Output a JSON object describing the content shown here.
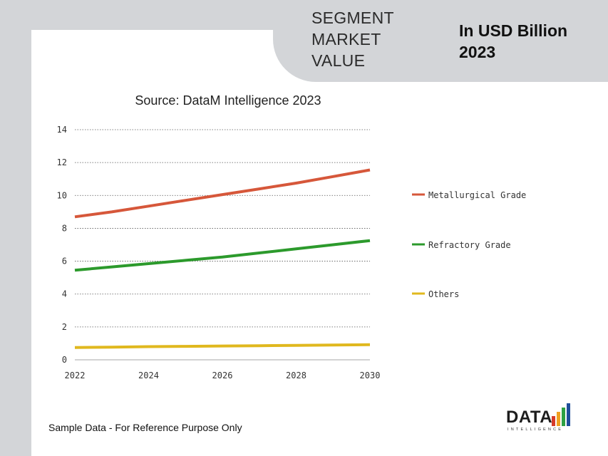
{
  "header": {
    "segment_title": "SEGMENT MARKET VALUE",
    "unit_title": "In USD Billion 2023"
  },
  "footer": {
    "note": "Sample Data - For Reference Purpose Only"
  },
  "logo": {
    "word": "DATA",
    "sub": "INTELLIGENCE",
    "bar_colors": [
      "#d63b2a",
      "#f0a020",
      "#2ea043",
      "#1f4e9a"
    ]
  },
  "chart_data": {
    "type": "line",
    "title": "Source: DataM Intelligence 2023",
    "xlabel": "",
    "ylabel": "",
    "x": [
      2022,
      2023,
      2024,
      2025,
      2026,
      2027,
      2028,
      2029,
      2030
    ],
    "x_ticks": [
      "2022",
      "2024",
      "2026",
      "2028",
      "2030"
    ],
    "y_ticks": [
      "0",
      "2",
      "4",
      "6",
      "8",
      "10",
      "12",
      "14"
    ],
    "xlim": [
      2022,
      2030
    ],
    "ylim": [
      0,
      14
    ],
    "grid": "horizontal-dotted",
    "legend_position": "right",
    "series": [
      {
        "name": "Metallurgical Grade",
        "color": "#d6573a",
        "values": [
          8.7,
          9.0,
          9.35,
          9.7,
          10.05,
          10.4,
          10.75,
          11.15,
          11.55
        ]
      },
      {
        "name": "Refractory Grade",
        "color": "#2c9a2c",
        "values": [
          5.45,
          5.65,
          5.85,
          6.05,
          6.25,
          6.5,
          6.75,
          7.0,
          7.25
        ]
      },
      {
        "name": "Others",
        "color": "#e0b81e",
        "values": [
          0.75,
          0.77,
          0.8,
          0.82,
          0.84,
          0.86,
          0.88,
          0.9,
          0.92
        ]
      }
    ]
  }
}
